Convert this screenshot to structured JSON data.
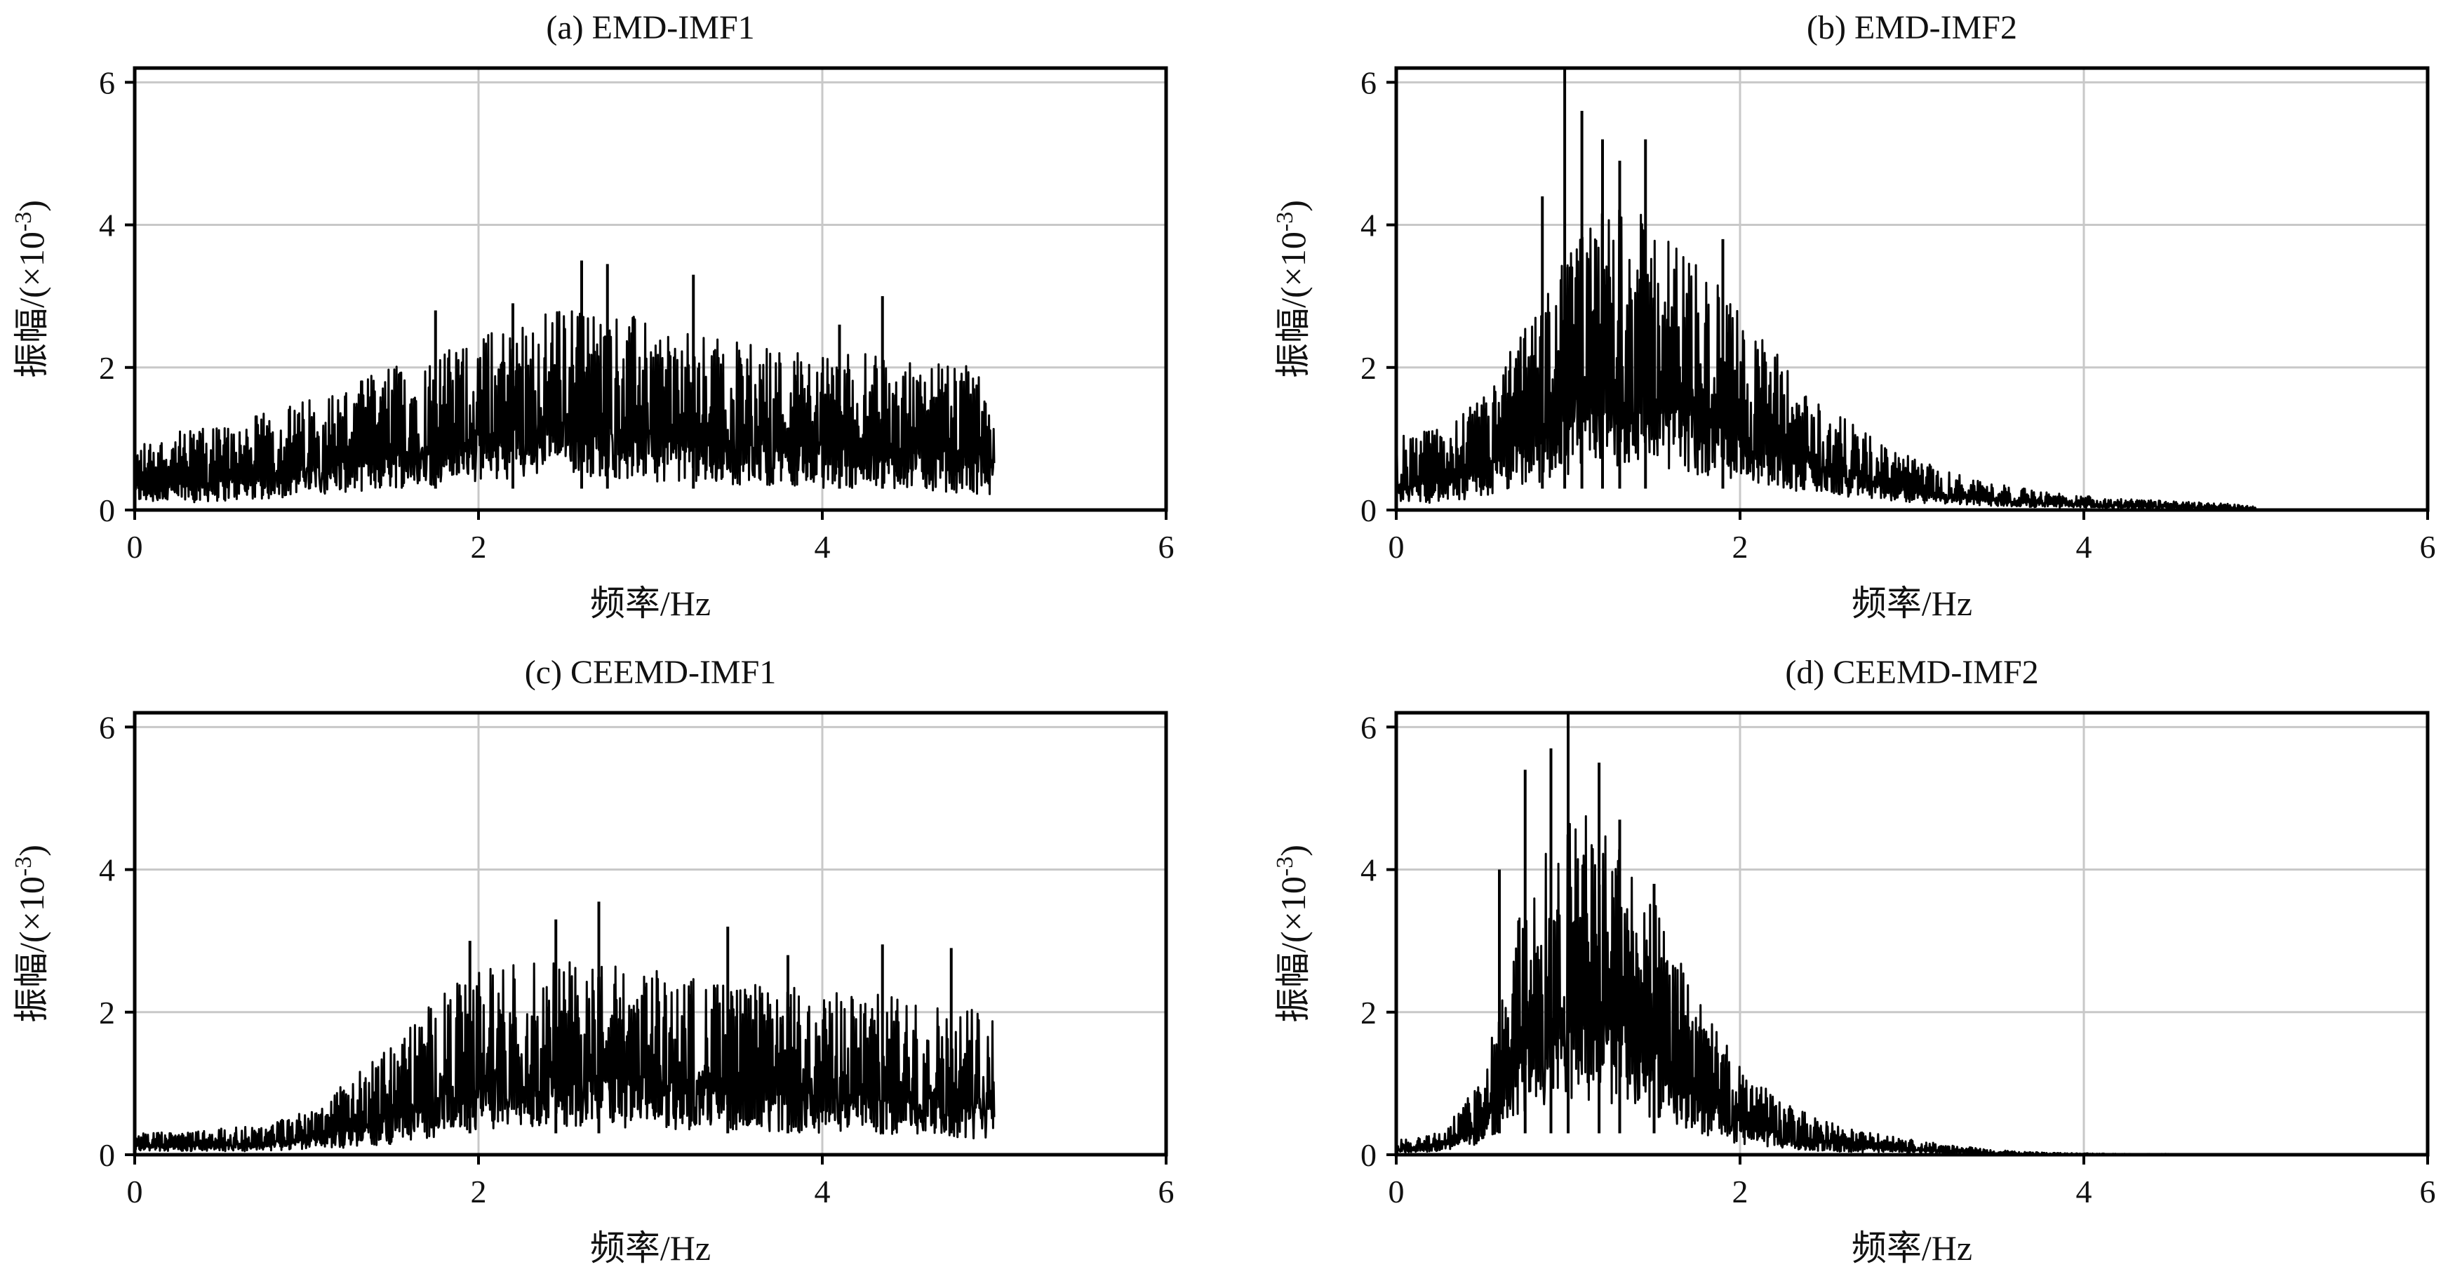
{
  "figure": {
    "x_axis_label": "频率/Hz",
    "y_axis_label_main": "振幅/(×10",
    "y_axis_label_exp": "-3",
    "y_axis_label_close": ")",
    "colors": {
      "line": "#000000",
      "grid": "#c8c8c8",
      "frame": "#000000",
      "background": "#ffffff"
    }
  },
  "chart_data": [
    {
      "id": "a",
      "type": "line",
      "title": "(a) EMD-IMF1",
      "xlabel": "频率/Hz",
      "ylabel": "振幅/(×10-3)",
      "xlim": [
        0,
        6
      ],
      "ylim": [
        0,
        6.2
      ],
      "xticks": [
        0,
        2,
        4,
        6
      ],
      "yticks": [
        0,
        2,
        4,
        6
      ],
      "grid": true,
      "series": [
        {
          "color": "#000000",
          "x": [
            0,
            0.25,
            0.5,
            0.75,
            1.0,
            1.25,
            1.5,
            1.75,
            2.0,
            2.25,
            2.5,
            2.75,
            3.0,
            3.25,
            3.5,
            3.75,
            4.0,
            4.25,
            4.5,
            4.75,
            5.0
          ],
          "upper": [
            0.9,
            1.05,
            1.15,
            1.3,
            1.5,
            1.7,
            1.95,
            2.1,
            2.35,
            2.6,
            2.75,
            2.7,
            2.55,
            2.35,
            2.3,
            2.2,
            2.15,
            2.1,
            2.0,
            1.95,
            1.9
          ],
          "lower": [
            0.1,
            0.1,
            0.12,
            0.15,
            0.2,
            0.25,
            0.3,
            0.35,
            0.4,
            0.45,
            0.5,
            0.45,
            0.4,
            0.4,
            0.35,
            0.35,
            0.3,
            0.3,
            0.3,
            0.25,
            0.2
          ],
          "peaks": [
            {
              "x": 2.6,
              "y": 3.5
            },
            {
              "x": 2.75,
              "y": 3.45
            },
            {
              "x": 3.25,
              "y": 3.3
            },
            {
              "x": 4.35,
              "y": 3.0
            },
            {
              "x": 1.75,
              "y": 2.8
            },
            {
              "x": 2.2,
              "y": 2.9
            },
            {
              "x": 4.1,
              "y": 2.6
            }
          ]
        }
      ]
    },
    {
      "id": "b",
      "type": "line",
      "title": "(b) EMD-IMF2",
      "xlabel": "频率/Hz",
      "ylabel": "振幅/(×10-3)",
      "xlim": [
        0,
        6
      ],
      "ylim": [
        0,
        6.2
      ],
      "xticks": [
        0,
        2,
        4,
        6
      ],
      "yticks": [
        0,
        2,
        4,
        6
      ],
      "grid": true,
      "series": [
        {
          "color": "#000000",
          "x": [
            0,
            0.25,
            0.5,
            0.75,
            1.0,
            1.25,
            1.5,
            1.75,
            2.0,
            2.25,
            2.5,
            2.75,
            3.0,
            3.25,
            3.5,
            3.75,
            4.0,
            4.25,
            4.5,
            4.75,
            5.0
          ],
          "upper": [
            1.0,
            1.1,
            1.5,
            2.5,
            3.5,
            4.2,
            3.9,
            3.4,
            2.7,
            2.0,
            1.4,
            1.0,
            0.7,
            0.5,
            0.35,
            0.25,
            0.2,
            0.15,
            0.12,
            0.1,
            0.05
          ],
          "lower": [
            0.1,
            0.1,
            0.15,
            0.3,
            0.5,
            0.6,
            0.6,
            0.5,
            0.4,
            0.3,
            0.2,
            0.15,
            0.1,
            0.08,
            0.05,
            0.04,
            0.03,
            0.02,
            0.02,
            0.01,
            0.0
          ],
          "peaks": [
            {
              "x": 0.98,
              "y": 6.2
            },
            {
              "x": 1.08,
              "y": 5.6
            },
            {
              "x": 1.2,
              "y": 5.2
            },
            {
              "x": 1.45,
              "y": 5.2
            },
            {
              "x": 1.3,
              "y": 4.9
            },
            {
              "x": 0.85,
              "y": 4.4
            },
            {
              "x": 1.9,
              "y": 3.8
            }
          ]
        }
      ]
    },
    {
      "id": "c",
      "type": "line",
      "title": "(c) CEEMD-IMF1",
      "xlabel": "频率/Hz",
      "ylabel": "振幅/(×10-3)",
      "xlim": [
        0,
        6
      ],
      "ylim": [
        0,
        6.2
      ],
      "xticks": [
        0,
        2,
        4,
        6
      ],
      "yticks": [
        0,
        2,
        4,
        6
      ],
      "grid": true,
      "series": [
        {
          "color": "#000000",
          "x": [
            0,
            0.25,
            0.5,
            0.75,
            1.0,
            1.25,
            1.5,
            1.75,
            2.0,
            2.25,
            2.5,
            2.75,
            3.0,
            3.25,
            3.5,
            3.75,
            4.0,
            4.25,
            4.5,
            4.75,
            5.0
          ],
          "upper": [
            0.3,
            0.3,
            0.35,
            0.4,
            0.6,
            1.0,
            1.5,
            2.1,
            2.5,
            2.6,
            2.6,
            2.6,
            2.5,
            2.4,
            2.3,
            2.3,
            2.2,
            2.2,
            2.1,
            2.0,
            2.0
          ],
          "lower": [
            0.05,
            0.05,
            0.05,
            0.05,
            0.08,
            0.1,
            0.15,
            0.25,
            0.35,
            0.4,
            0.4,
            0.4,
            0.35,
            0.35,
            0.35,
            0.3,
            0.3,
            0.3,
            0.25,
            0.25,
            0.2
          ],
          "peaks": [
            {
              "x": 2.7,
              "y": 3.55
            },
            {
              "x": 2.45,
              "y": 3.3
            },
            {
              "x": 3.45,
              "y": 3.2
            },
            {
              "x": 4.35,
              "y": 2.95
            },
            {
              "x": 1.95,
              "y": 3.0
            },
            {
              "x": 3.8,
              "y": 2.8
            },
            {
              "x": 4.75,
              "y": 2.9
            }
          ]
        }
      ]
    },
    {
      "id": "d",
      "type": "line",
      "title": "(d) CEEMD-IMF2",
      "xlabel": "频率/Hz",
      "ylabel": "振幅/(×10-3)",
      "xlim": [
        0,
        6
      ],
      "ylim": [
        0,
        6.2
      ],
      "xticks": [
        0,
        2,
        4,
        6
      ],
      "yticks": [
        0,
        2,
        4,
        6
      ],
      "grid": true,
      "series": [
        {
          "color": "#000000",
          "x": [
            0,
            0.25,
            0.5,
            0.75,
            1.0,
            1.25,
            1.5,
            1.75,
            2.0,
            2.25,
            2.5,
            2.75,
            3.0,
            3.25,
            3.5,
            3.75,
            4.0,
            4.25,
            4.5,
            4.75,
            5.0
          ],
          "upper": [
            0.2,
            0.3,
            1.0,
            3.6,
            4.6,
            4.5,
            3.4,
            2.1,
            1.2,
            0.7,
            0.45,
            0.3,
            0.2,
            0.12,
            0.06,
            0.03,
            0.02,
            0.01,
            0.01,
            0.0,
            0.0
          ],
          "lower": [
            0.02,
            0.05,
            0.15,
            0.6,
            0.8,
            0.7,
            0.5,
            0.3,
            0.15,
            0.08,
            0.05,
            0.03,
            0.02,
            0.01,
            0.0,
            0.0,
            0.0,
            0.0,
            0.0,
            0.0,
            0.0
          ],
          "peaks": [
            {
              "x": 1.0,
              "y": 6.2
            },
            {
              "x": 0.9,
              "y": 5.7
            },
            {
              "x": 1.18,
              "y": 5.5
            },
            {
              "x": 0.75,
              "y": 5.4
            },
            {
              "x": 1.3,
              "y": 4.7
            },
            {
              "x": 1.5,
              "y": 3.8
            },
            {
              "x": 0.6,
              "y": 4.0
            }
          ]
        }
      ]
    }
  ]
}
